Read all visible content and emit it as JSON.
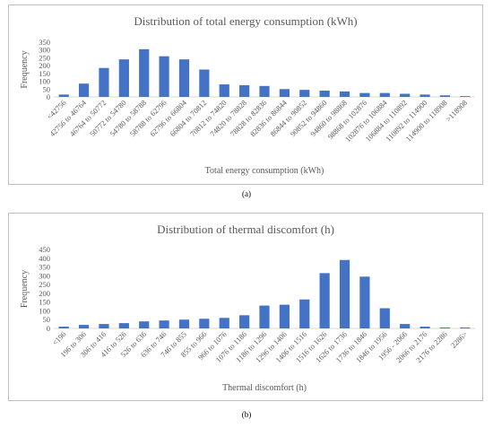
{
  "chart_data": [
    {
      "type": "bar",
      "title": "Distribution of total energy consumption (kWh)",
      "xlabel": "Total energy consumption (kWh)",
      "ylabel": "Frequency",
      "ylim": [
        0,
        350
      ],
      "yticks": [
        0,
        50,
        100,
        150,
        200,
        250,
        300,
        350
      ],
      "grid": false,
      "bar_color": "#4472c4",
      "categories": [
        "<42756",
        "42756 to 46764",
        "46764 to 50772",
        "50772 to 54780",
        "54780 to 58788",
        "58788 to 62796",
        "62796 to 66804",
        "66804 to 70812",
        "70812 to 74820",
        "74820 to 78828",
        "78828 to 82836",
        "82836 to 86844",
        "86844 to 90852",
        "90852 to 94860",
        "94860 to 98868",
        "98868 to 102876",
        "102876 to 106884",
        "106884 to 110892",
        "110892 to 114900",
        "114900 to 118908",
        ">118908"
      ],
      "values": [
        15,
        85,
        185,
        240,
        305,
        260,
        240,
        175,
        80,
        75,
        70,
        50,
        45,
        40,
        35,
        25,
        25,
        20,
        15,
        10,
        5
      ]
    },
    {
      "type": "bar",
      "title": "Distribution of thermal discomfort (h)",
      "xlabel": "Thermal discomfort (h)",
      "ylabel": "Frequency",
      "ylim": [
        0,
        450
      ],
      "yticks": [
        0,
        50,
        100,
        150,
        200,
        250,
        300,
        350,
        400,
        450
      ],
      "grid": false,
      "bar_color": "#4472c4",
      "categories": [
        "<196",
        "196 to 306",
        "306 to 416",
        "416 to 526",
        "526 to 636",
        "636 to 746",
        "746 to 855",
        "855 to 966",
        "966 to 1076",
        "1076 to 1186",
        "1186 to 1296",
        "1296 to 1406",
        "1406 to 1516",
        "1516 to 1626",
        "1626 to 1736",
        "1736 to 1846",
        "1846 to 1956",
        "1956 - 2066",
        "2066 to 2176",
        "2176 to 2286",
        "2286>"
      ],
      "values": [
        10,
        20,
        25,
        30,
        40,
        45,
        50,
        55,
        60,
        75,
        130,
        135,
        165,
        315,
        390,
        295,
        115,
        25,
        10,
        5,
        5
      ]
    }
  ],
  "captions": {
    "a": "(a)",
    "b": "(b)"
  }
}
